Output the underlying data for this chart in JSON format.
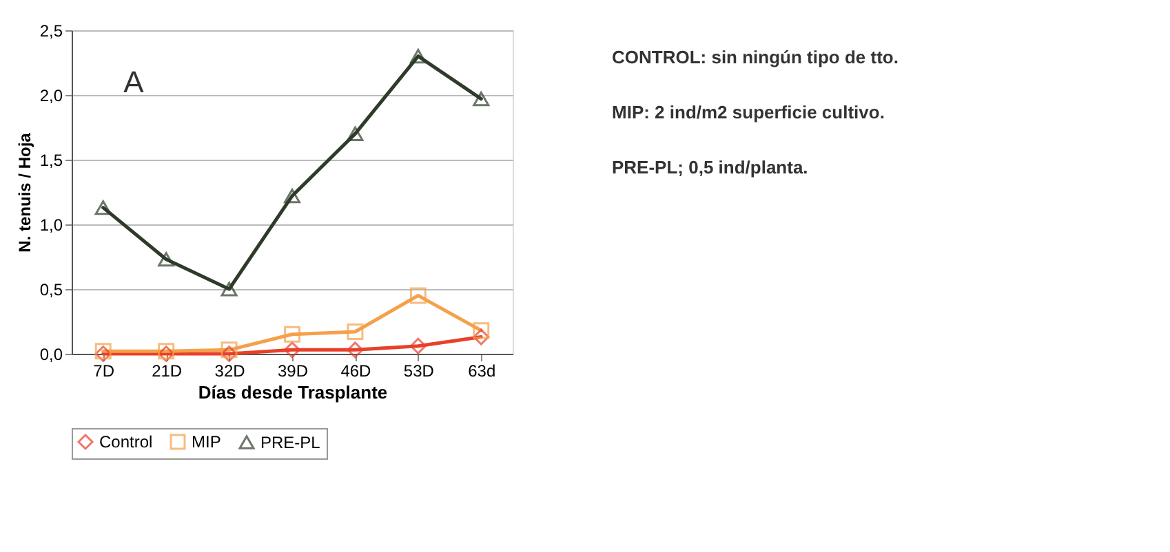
{
  "chart_data": {
    "type": "line",
    "xlabel": "Días desde Trasplante",
    "ylabel": "N. tenuis / Hoja",
    "categories": [
      "7D",
      "21D",
      "32D",
      "39D",
      "46D",
      "53D",
      "63d"
    ],
    "series": [
      {
        "name": "Control",
        "color": "#e8402a",
        "marker": "diamond",
        "values": [
          0.0,
          0.0,
          0.0,
          0.03,
          0.03,
          0.06,
          0.13
        ]
      },
      {
        "name": "MIP",
        "color": "#f5a04a",
        "marker": "square",
        "values": [
          0.02,
          0.02,
          0.03,
          0.15,
          0.17,
          0.45,
          0.18
        ]
      },
      {
        "name": "PRE-PL",
        "color": "#2f3b2a",
        "marker": "triangle",
        "values": [
          1.13,
          0.73,
          0.5,
          1.22,
          1.7,
          2.3,
          1.97
        ]
      }
    ],
    "ylim": [
      0,
      2.5
    ],
    "yticks": [
      {
        "value": 0,
        "label": "0,0"
      },
      {
        "value": 0.5,
        "label": "0,5"
      },
      {
        "value": 1,
        "label": "1,0"
      },
      {
        "value": 1.5,
        "label": "1,5"
      },
      {
        "value": 2,
        "label": "2,0"
      },
      {
        "value": 2.5,
        "label": "2,5"
      }
    ],
    "grid": "y",
    "legend": "bottom",
    "line_style": "solid",
    "annotations": [
      "A",
      "CONTROL: sin ningún tipo de tto.",
      "MIP: 2 ind/m2 superficie cultivo.",
      "PRE-PL; 0,5 ind/planta."
    ]
  }
}
